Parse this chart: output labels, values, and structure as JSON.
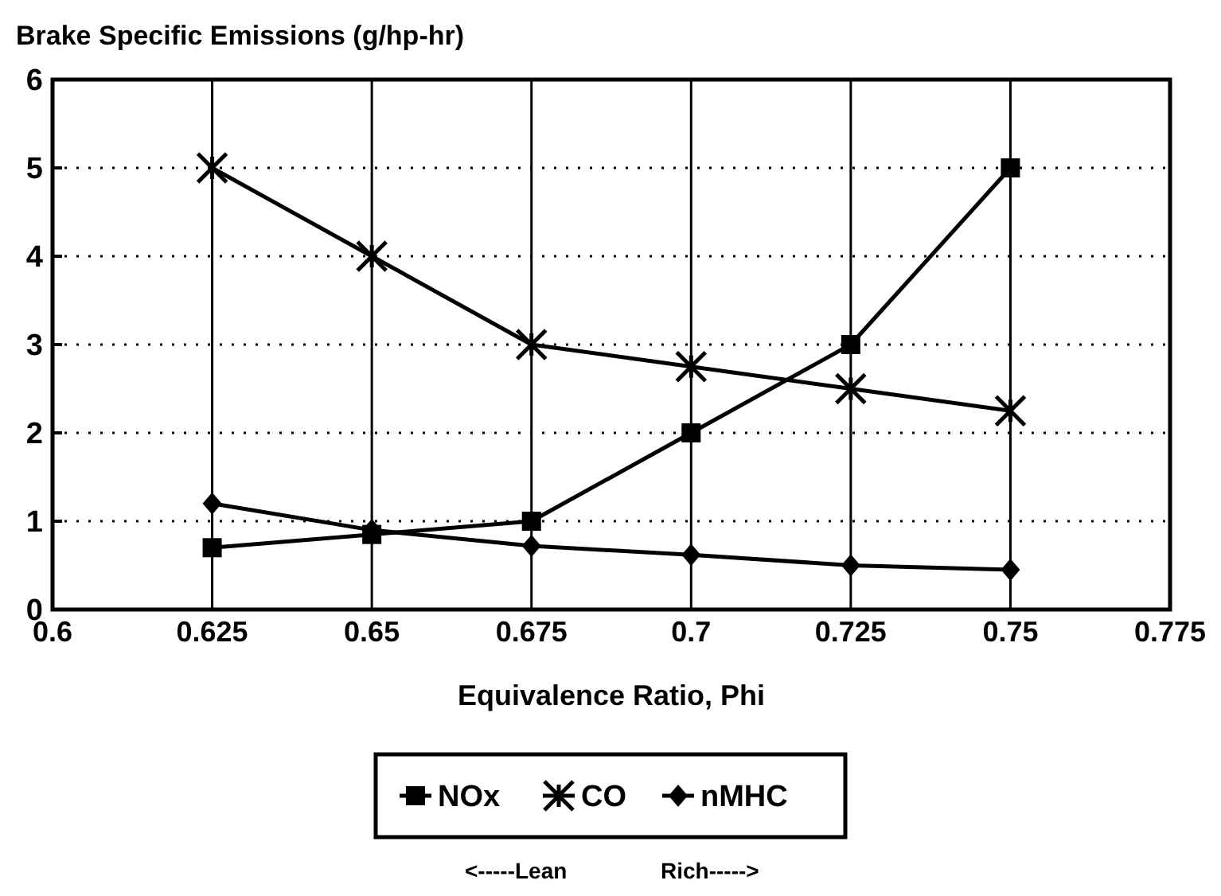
{
  "chart_data": {
    "type": "line",
    "title": "Brake Specific Emissions (g/hp-hr)",
    "xlabel": "Equivalence Ratio, Phi",
    "x": [
      0.625,
      0.65,
      0.675,
      0.7,
      0.725,
      0.75
    ],
    "series": [
      {
        "name": "NOx",
        "color": "#000000",
        "marker": "square",
        "values": [
          0.7,
          0.85,
          1.0,
          2.0,
          3.0,
          5.0
        ]
      },
      {
        "name": "CO",
        "color": "#000000",
        "marker": "cross",
        "values": [
          5,
          4,
          3,
          2.75,
          2.5,
          2.25
        ]
      },
      {
        "name": "nMHC",
        "color": "#000000",
        "marker": "diamond",
        "values": [
          1.2,
          0.9,
          0.72,
          0.62,
          0.5,
          0.45
        ]
      }
    ],
    "xlim": [
      0.6,
      0.775
    ],
    "xticks": [
      0.6,
      0.625,
      0.65,
      0.675,
      0.7,
      0.725,
      0.75,
      0.775
    ],
    "ylim": [
      0,
      6
    ],
    "yticks": [
      0,
      1,
      2,
      3,
      4,
      5,
      6
    ],
    "grid": true,
    "legend": "bottom",
    "line_style": "solid",
    "annotations": [
      "<-----Lean",
      "Rich----->"
    ]
  }
}
